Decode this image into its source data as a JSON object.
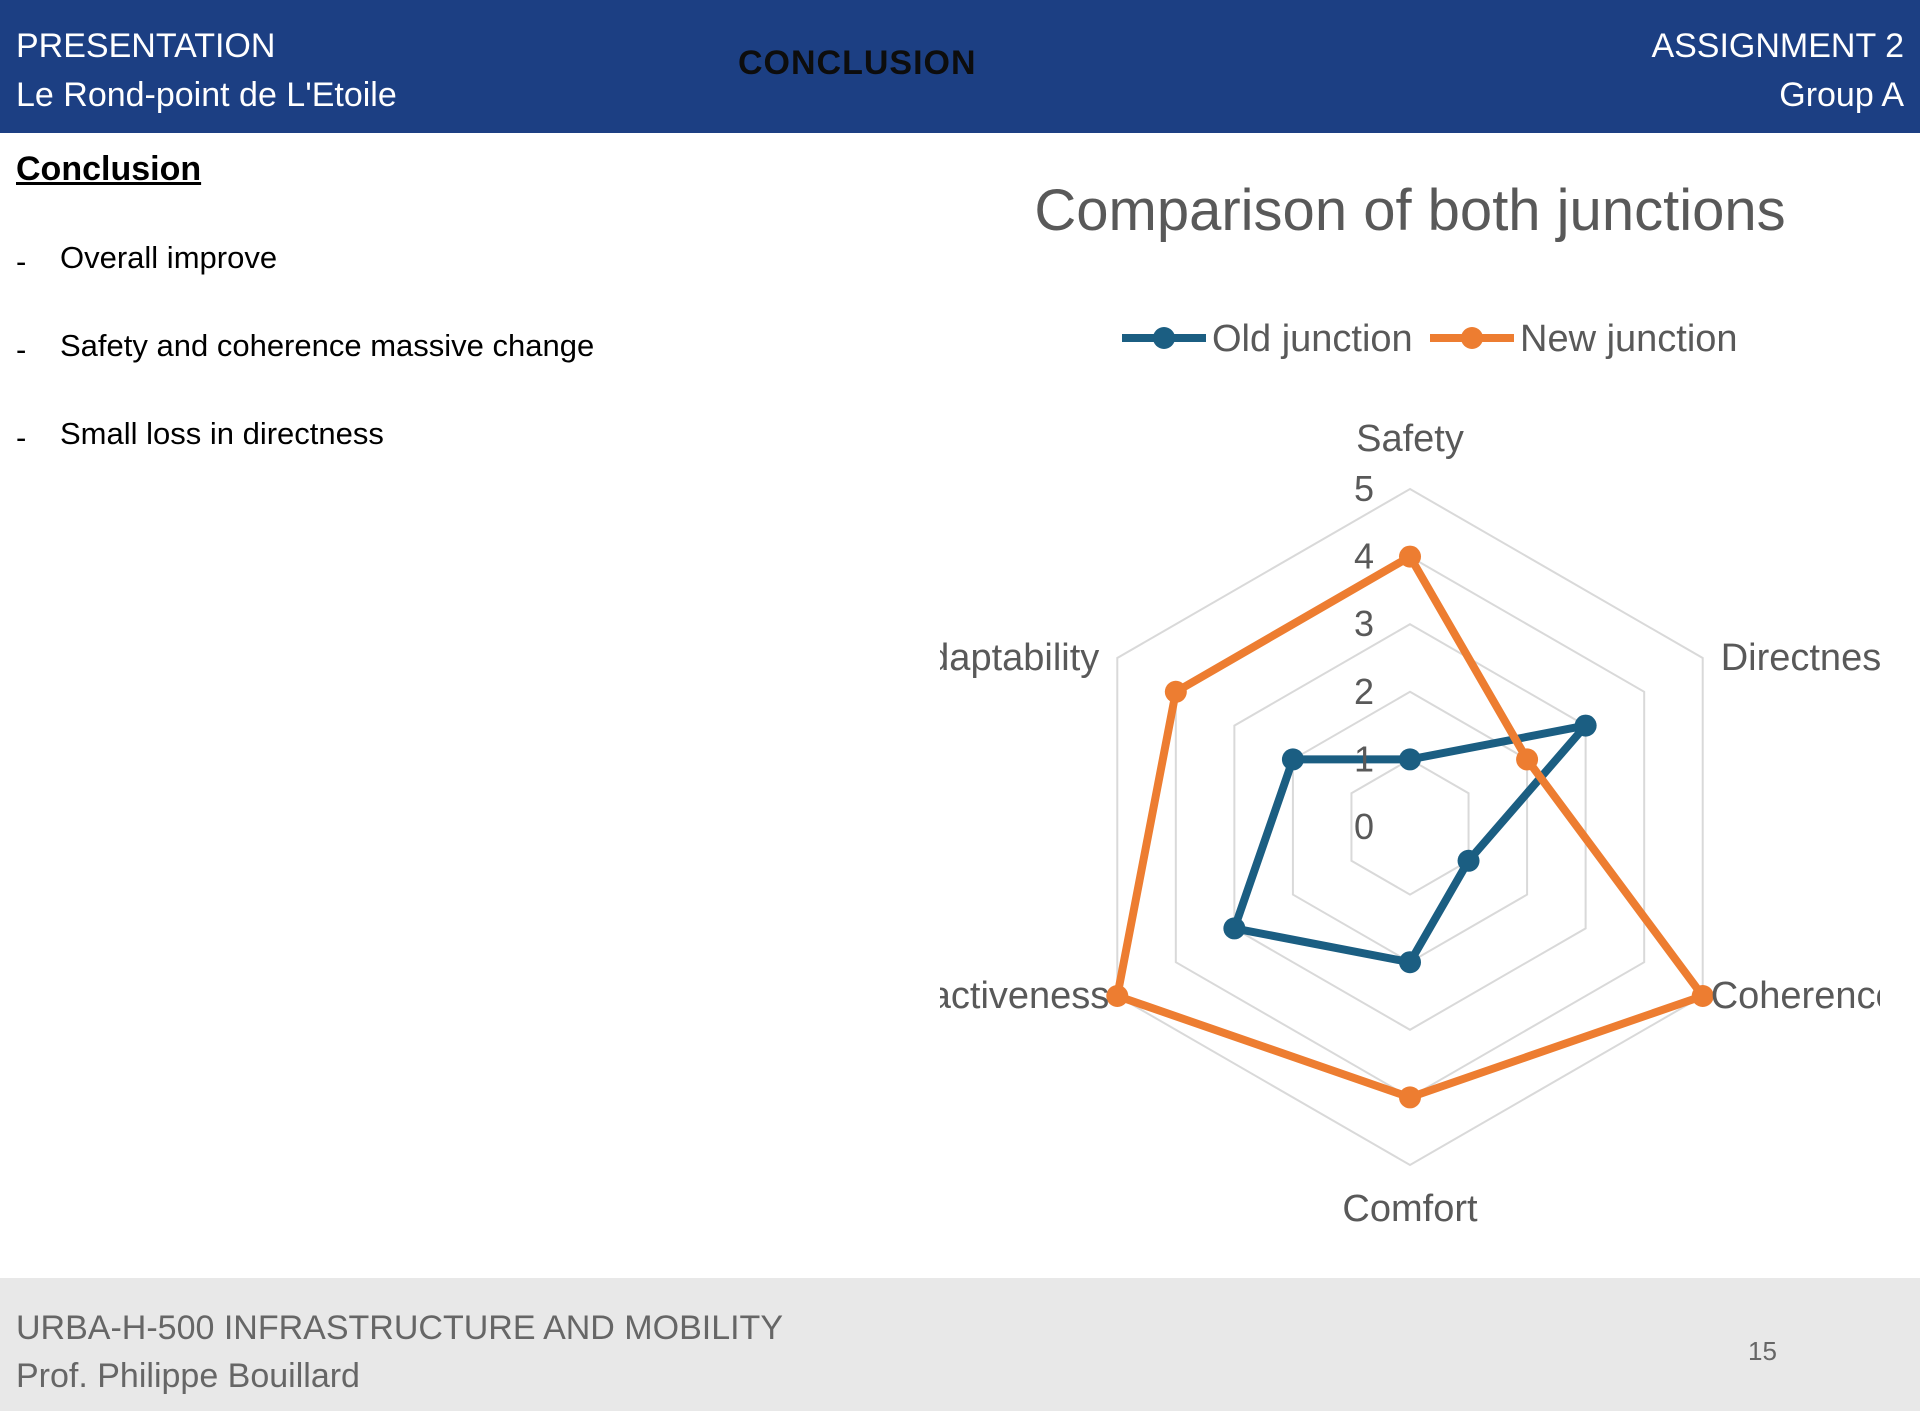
{
  "header": {
    "left_line1": "PRESENTATION",
    "left_line2": "Le Rond-point de L'Etoile",
    "center": "CONCLUSION",
    "right_line1": "ASSIGNMENT 2",
    "right_line2": "Group A",
    "background": "#1c3f83"
  },
  "content": {
    "section_title": "Conclusion",
    "bullet_marker": "-",
    "bullets": [
      "Overall improve",
      "Safety and coherence massive change",
      "Small loss in directness"
    ]
  },
  "chart_data": {
    "type": "radar",
    "title": "Comparison of both junctions",
    "categories": [
      "Safety",
      "Directness",
      "Coherence",
      "Comfort",
      "Attractiveness",
      "Adaptability"
    ],
    "series": [
      {
        "name": "Old junction",
        "color": "#1b5e82",
        "values": [
          1,
          3,
          1,
          2,
          3,
          2
        ]
      },
      {
        "name": "New junction",
        "color": "#ed7d31",
        "values": [
          4,
          2,
          5,
          4,
          5,
          4
        ]
      }
    ],
    "rlim": [
      0,
      5
    ],
    "ticks": [
      0,
      1,
      2,
      3,
      4,
      5
    ],
    "grid": true,
    "legend": "top"
  },
  "footer": {
    "line1": "URBA-H-500 INFRASTRUCTURE AND MOBILITY",
    "line2": "Prof. Philippe Bouillard",
    "page_number": "15"
  }
}
